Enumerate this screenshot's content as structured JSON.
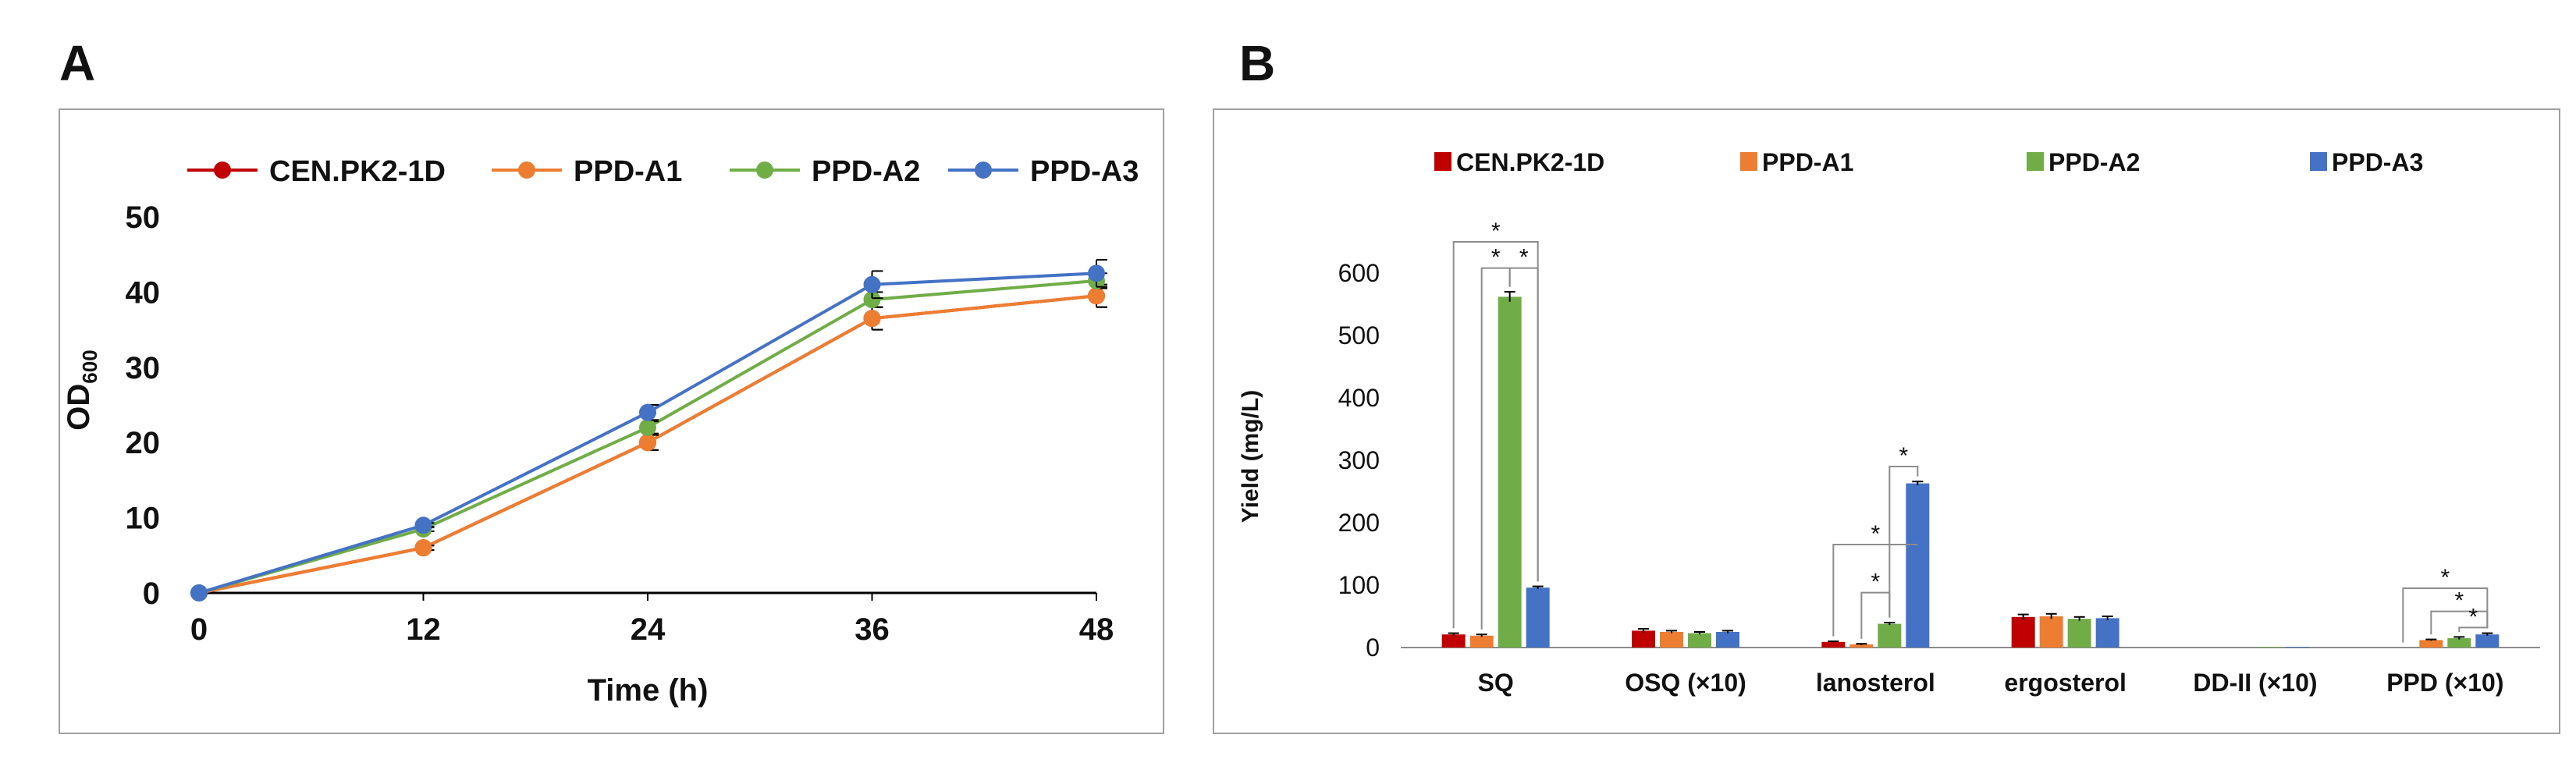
{
  "panels": [
    {
      "letter": "A"
    },
    {
      "letter": "B"
    }
  ],
  "chart_data": [
    {
      "type": "line",
      "panel": "A",
      "xlabel": "Time (h)",
      "ylabel": "OD",
      "ylabel_sub": "600",
      "x": [
        0,
        12,
        24,
        36,
        48
      ],
      "xticks": [
        "0",
        "12",
        "24",
        "36",
        "48"
      ],
      "ylim": [
        0,
        50
      ],
      "yticks": [
        "0",
        "10",
        "20",
        "30",
        "40",
        "50"
      ],
      "grid": false,
      "legend_position": "top",
      "series": [
        {
          "name": "CEN.PK2-1D",
          "color": "#c00000",
          "values": [
            0,
            6,
            20,
            36.5,
            39.5
          ],
          "errors": [
            0,
            0.3,
            1,
            1.5,
            1.5
          ]
        },
        {
          "name": "PPD-A1",
          "color": "#ed7d31",
          "values": [
            0,
            6,
            20,
            36.5,
            39.5
          ],
          "errors": [
            0,
            0.3,
            1,
            1.5,
            1.5
          ]
        },
        {
          "name": "PPD-A2",
          "color": "#70ad47",
          "values": [
            0,
            8.5,
            22,
            39,
            41.5
          ],
          "errors": [
            0,
            0.3,
            0.8,
            1,
            1
          ]
        },
        {
          "name": "PPD-A3",
          "color": "#4472c4",
          "values": [
            0,
            9,
            24,
            41,
            42.5
          ],
          "errors": [
            0,
            0.3,
            1,
            1.8,
            1.8
          ]
        }
      ]
    },
    {
      "type": "bar",
      "panel": "B",
      "ylabel": "Yield (mg/L)",
      "xlabel": "",
      "categories": [
        "SQ",
        "OSQ (×10)",
        "lanosterol",
        "ergosterol",
        "DD-II (×10)",
        "PPD (×10)"
      ],
      "ylim": [
        0,
        600
      ],
      "yticks": [
        "0",
        "100",
        "200",
        "300",
        "400",
        "500",
        "600"
      ],
      "grid": false,
      "legend_position": "top",
      "series": [
        {
          "name": "CEN.PK2-1D",
          "color": "#c00000",
          "values": [
            21,
            27,
            9,
            49,
            0,
            0
          ],
          "errors": [
            2,
            3,
            1,
            4,
            0,
            0
          ]
        },
        {
          "name": "PPD-A1",
          "color": "#ed7d31",
          "values": [
            19,
            25,
            5,
            50,
            0,
            12
          ],
          "errors": [
            2,
            2,
            1,
            4,
            0,
            1
          ]
        },
        {
          "name": "PPD-A2",
          "color": "#70ad47",
          "values": [
            562,
            23,
            38,
            46,
            1,
            15
          ],
          "errors": [
            8,
            2,
            2,
            3,
            0,
            2
          ]
        },
        {
          "name": "PPD-A3",
          "color": "#4472c4",
          "values": [
            96,
            25,
            263,
            47,
            1,
            21
          ],
          "errors": [
            2,
            2,
            3,
            3,
            0,
            2
          ]
        }
      ],
      "significance_marker": "*"
    }
  ]
}
